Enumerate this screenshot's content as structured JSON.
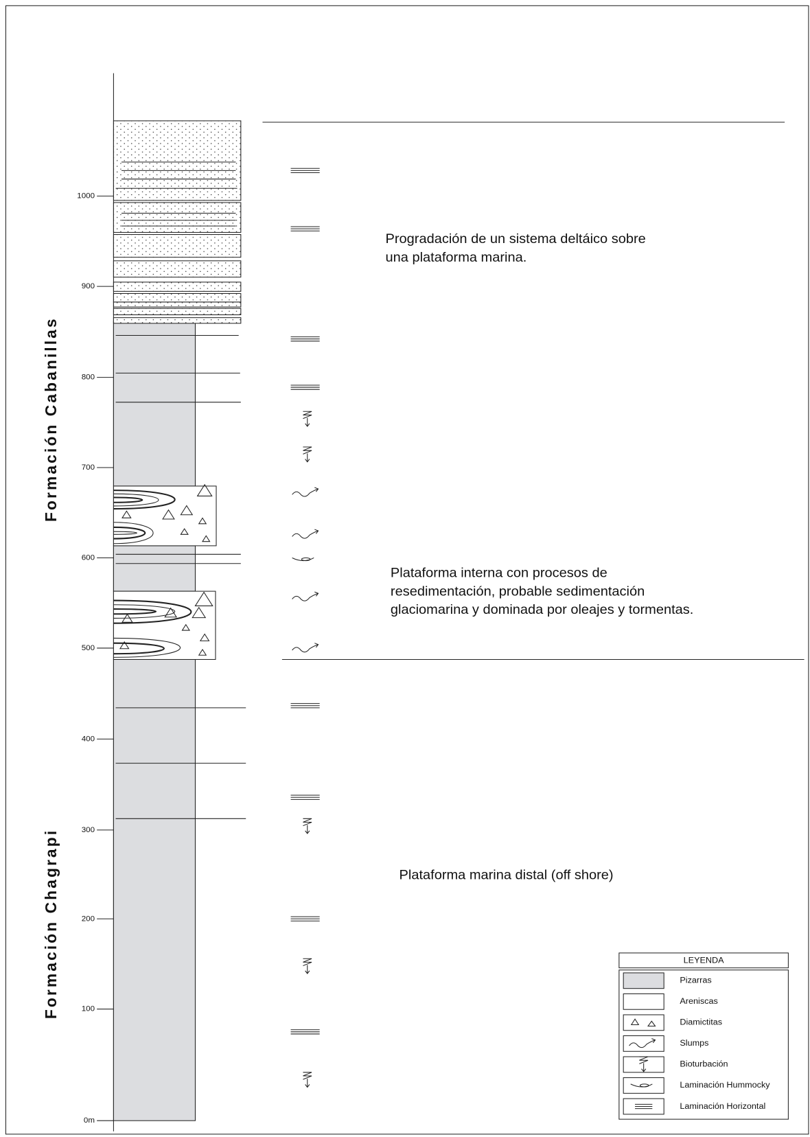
{
  "scale": {
    "labels": [
      "0m",
      "100",
      "200",
      "300",
      "400",
      "500",
      "600",
      "700",
      "800",
      "900",
      "1000"
    ]
  },
  "formations": [
    "Formación Cabanillas",
    "Formación Chagrapi"
  ],
  "interpretations": [
    {
      "lines": [
        "Progradación de un sistema deltáico sobre",
        "una plataforma marina."
      ]
    },
    {
      "lines": [
        "Plataforma interna con procesos de",
        "resedimentación, probable sedimentación",
        "glaciomarina y dominada por oleajes y tormentas."
      ]
    },
    {
      "lines": [
        "Plataforma marina distal (off shore)"
      ]
    }
  ],
  "legend": {
    "title": "LEYENDA",
    "items": [
      "Pizarras",
      "Areniscas",
      "Diamictitas",
      "Slumps",
      "Bioturbación",
      "Laminación Hummocky",
      "Laminación Horizontal"
    ]
  }
}
